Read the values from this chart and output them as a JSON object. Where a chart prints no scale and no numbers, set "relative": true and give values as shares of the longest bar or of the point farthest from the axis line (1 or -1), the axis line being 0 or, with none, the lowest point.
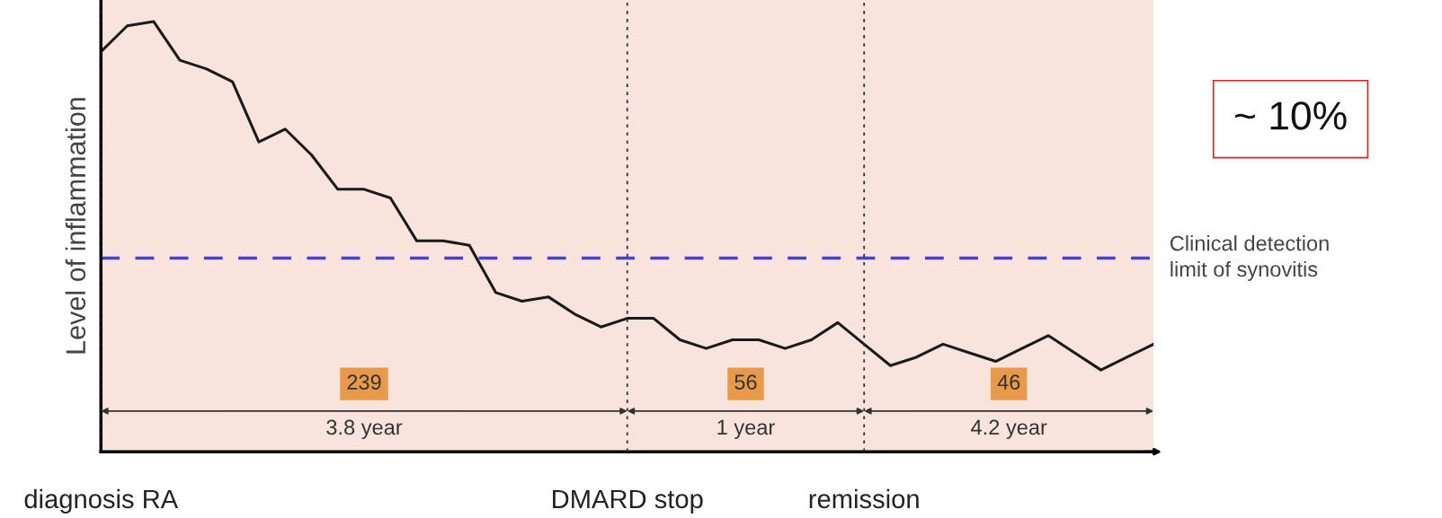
{
  "chart_data": {
    "type": "line",
    "relative": true,
    "ylabel": "Level of inflammation",
    "grid": "x",
    "marker": "none",
    "line_style": "solid",
    "categories": [
      "diagnosis RA",
      null,
      null,
      null,
      null,
      null,
      null,
      null,
      null,
      null,
      null,
      null,
      null,
      null,
      null,
      null,
      null,
      null,
      null,
      null,
      "DMARD stop",
      null,
      null,
      null,
      null,
      null,
      null,
      null,
      null,
      "remission",
      null,
      null,
      null,
      null,
      null,
      null,
      null,
      null,
      null,
      null,
      null
    ],
    "series": [
      {
        "color": "#1a1a1a",
        "values": [
          0.93,
          0.99,
          1.0,
          0.91,
          0.89,
          0.86,
          0.72,
          0.75,
          0.69,
          0.61,
          0.61,
          0.59,
          0.49,
          0.49,
          0.48,
          0.37,
          0.35,
          0.36,
          0.32,
          0.29,
          0.31,
          0.31,
          0.26,
          0.24,
          0.26,
          0.26,
          0.24,
          0.26,
          0.3,
          0.25,
          0.2,
          0.22,
          0.25,
          0.23,
          0.21,
          0.24,
          0.27,
          0.23,
          0.19,
          0.22,
          0.25
        ]
      }
    ],
    "ref_lines": [
      {
        "axis": "y",
        "value": 0.45,
        "label": "Clinical detection\nlimit of synovitis",
        "color": "#4a3fd8",
        "line_style": "dashed"
      }
    ],
    "annotations": [
      "239",
      "3.8 year",
      "56",
      "1 year",
      "46",
      "4.2 year",
      "~ 10%"
    ]
  }
}
